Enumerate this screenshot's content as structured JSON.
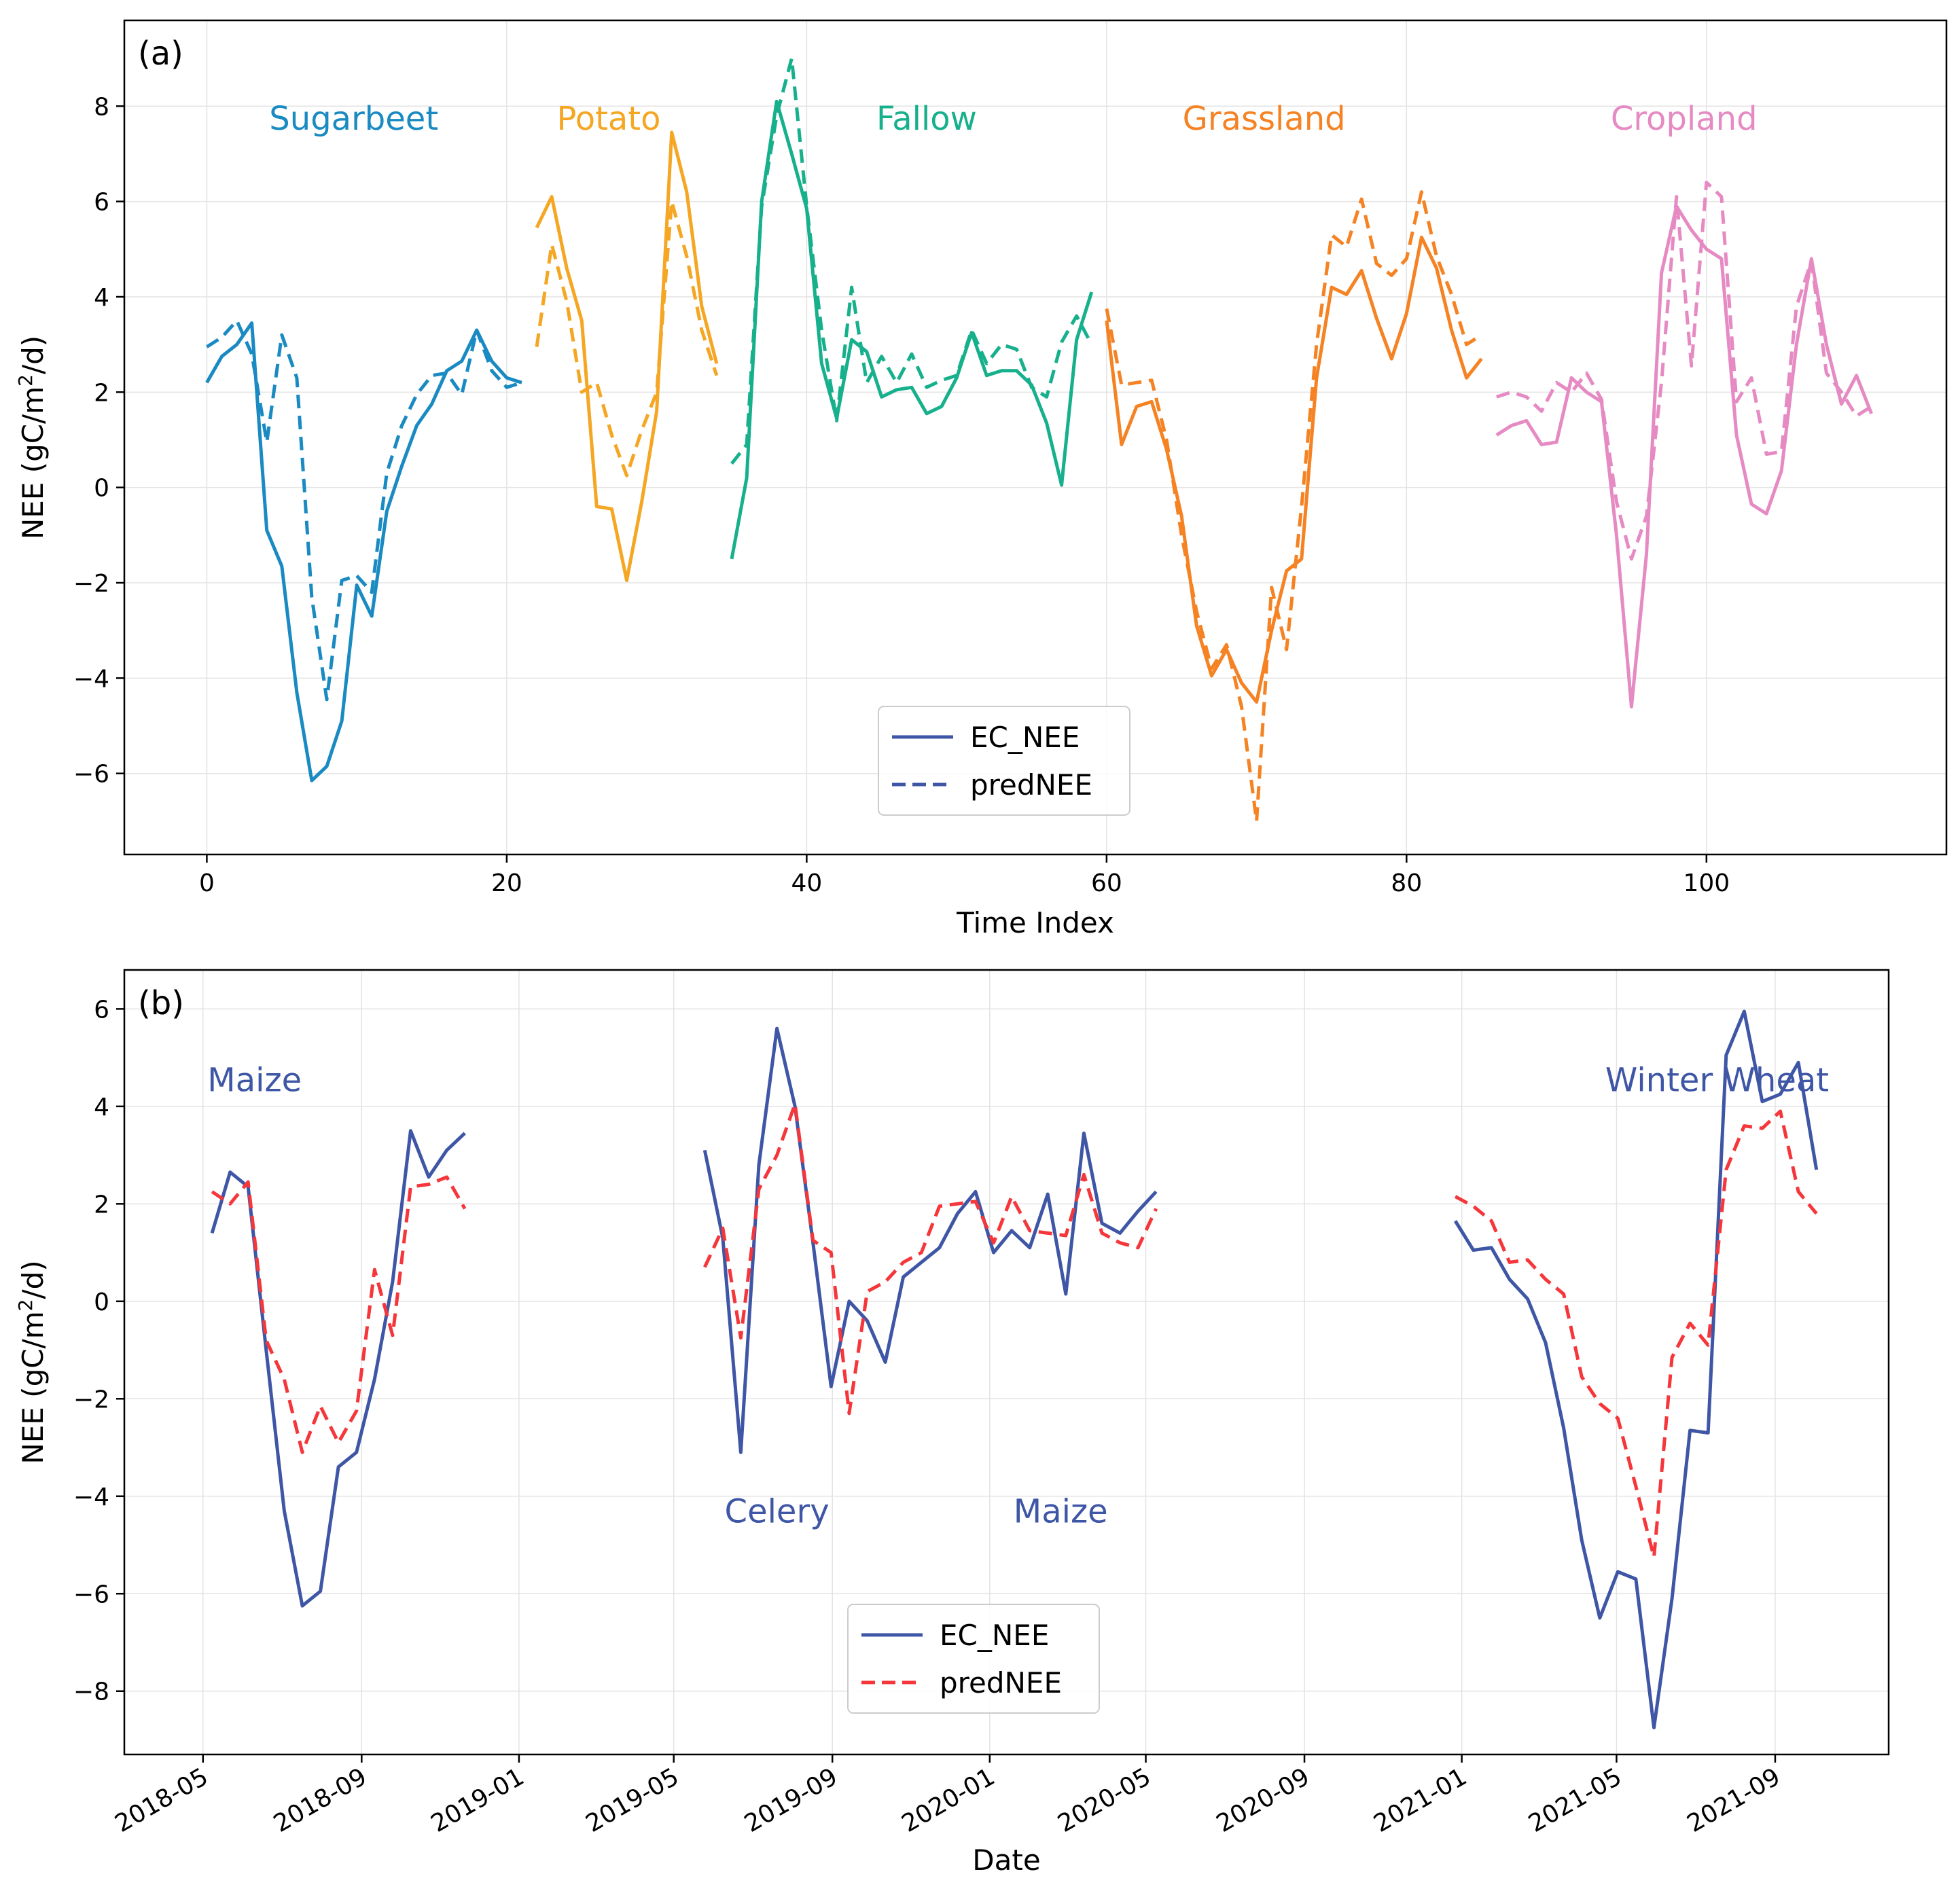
{
  "chart_data": [
    {
      "panel_label": "(a)",
      "type": "line",
      "xlabel": "Time Index",
      "ylabel": "NEE (gC/m²/d)",
      "xlim": [
        -5.5,
        116
      ],
      "ylim": [
        -7.7,
        9.8
      ],
      "xticks": [
        0,
        20,
        40,
        60,
        80,
        100
      ],
      "yticks": [
        -6,
        -4,
        -2,
        0,
        2,
        4,
        6,
        8
      ],
      "grid": true,
      "legend": {
        "position": "lower-center",
        "entries": [
          {
            "label": "EC_NEE",
            "style": "solid",
            "color": "#3e56a5"
          },
          {
            "label": "predNEE",
            "style": "dashed",
            "color": "#3e56a5"
          }
        ]
      },
      "groups": [
        {
          "name": "Sugarbeet",
          "color": "#1a8ac2",
          "label_at": [
            9.8,
            7.75
          ],
          "ec": {
            "x": [
              0,
              1,
              2,
              3,
              4,
              5,
              6,
              7,
              8,
              9,
              10,
              11,
              12,
              13,
              14,
              15,
              16,
              17,
              18,
              19,
              20,
              21
            ],
            "y": [
              2.2,
              2.75,
              3.0,
              3.45,
              -0.9,
              -1.65,
              -4.3,
              -6.15,
              -5.85,
              -4.9,
              -2.05,
              -2.7,
              -0.5,
              0.45,
              1.3,
              1.75,
              2.45,
              2.65,
              3.3,
              2.65,
              2.3,
              2.2
            ]
          },
          "pred": {
            "x": [
              0,
              1,
              2,
              3,
              4,
              5,
              6,
              7,
              8,
              9,
              10,
              11,
              12,
              13,
              14,
              15,
              16,
              17,
              18,
              19,
              20,
              21
            ],
            "y": [
              2.95,
              3.15,
              3.5,
              2.8,
              0.95,
              3.2,
              2.3,
              -2.3,
              -4.45,
              -1.95,
              -1.85,
              -2.2,
              0.3,
              1.3,
              1.95,
              2.35,
              2.4,
              1.95,
              3.3,
              2.45,
              2.1,
              2.2
            ]
          }
        },
        {
          "name": "Potato",
          "color": "#f5a623",
          "label_at": [
            26.8,
            7.75
          ],
          "ec": {
            "x": [
              22,
              23,
              24,
              25,
              26,
              27,
              28,
              29,
              30,
              31,
              32,
              33,
              34
            ],
            "y": [
              5.45,
              6.1,
              4.6,
              3.5,
              -0.4,
              -0.45,
              -1.95,
              -0.3,
              1.6,
              7.45,
              6.2,
              3.8,
              2.6
            ]
          },
          "pred": {
            "x": [
              22,
              23,
              24,
              25,
              26,
              27,
              28,
              29,
              30,
              31,
              32,
              33,
              34
            ],
            "y": [
              2.95,
              5.1,
              3.9,
              2.0,
              2.2,
              1.1,
              0.25,
              1.2,
              2.0,
              6.0,
              4.85,
              3.3,
              2.35
            ]
          }
        },
        {
          "name": "Fallow",
          "color": "#17b08c",
          "label_at": [
            48.0,
            7.75
          ],
          "ec": {
            "x": [
              35,
              36,
              37,
              38,
              39,
              40,
              41,
              42,
              43,
              44,
              45,
              46,
              47,
              48,
              49,
              50,
              51,
              52,
              53,
              54,
              55,
              56,
              57,
              58,
              59
            ],
            "y": [
              -1.5,
              0.2,
              6.0,
              8.1,
              7.0,
              5.85,
              2.6,
              1.45,
              3.1,
              2.85,
              1.9,
              2.05,
              2.1,
              1.55,
              1.7,
              2.3,
              3.25,
              2.35,
              2.45,
              2.45,
              2.15,
              1.35,
              0.05,
              3.1,
              4.1
            ]
          },
          "pred": {
            "x": [
              35,
              36,
              37,
              38,
              39,
              40,
              41,
              42,
              43,
              44,
              45,
              46,
              47,
              48,
              49,
              50,
              51,
              52,
              53,
              54,
              55,
              56,
              57,
              58,
              59
            ],
            "y": [
              0.5,
              0.9,
              5.9,
              7.8,
              9.0,
              5.9,
              3.3,
              1.4,
              4.2,
              2.2,
              2.75,
              2.2,
              2.8,
              2.1,
              2.25,
              2.35,
              3.3,
              2.6,
              3.0,
              2.9,
              2.1,
              1.9,
              3.05,
              3.6,
              3.0
            ]
          }
        },
        {
          "name": "Grassland",
          "color": "#f58223",
          "label_at": [
            70.5,
            7.75
          ],
          "ec": {
            "x": [
              60,
              61,
              62,
              63,
              64,
              65,
              66,
              67,
              68,
              69,
              70,
              71,
              72,
              73,
              74,
              75,
              76,
              77,
              78,
              79,
              80,
              81,
              82,
              83,
              84,
              85
            ],
            "y": [
              3.5,
              0.9,
              1.7,
              1.8,
              0.8,
              -0.6,
              -2.9,
              -3.95,
              -3.4,
              -4.1,
              -4.5,
              -3.0,
              -1.75,
              -1.5,
              2.3,
              4.2,
              4.05,
              4.55,
              3.55,
              2.7,
              3.65,
              5.25,
              4.6,
              3.3,
              2.3,
              2.7
            ]
          },
          "pred": {
            "x": [
              60,
              61,
              62,
              63,
              64,
              65,
              66,
              67,
              68,
              69,
              70,
              71,
              72,
              73,
              74,
              75,
              76,
              77,
              78,
              79,
              80,
              81,
              82,
              83,
              84,
              85
            ],
            "y": [
              3.75,
              2.15,
              2.2,
              2.25,
              1.0,
              -1.0,
              -2.6,
              -3.8,
              -3.3,
              -4.6,
              -7.0,
              -2.1,
              -3.4,
              -0.4,
              3.0,
              5.3,
              5.05,
              6.05,
              4.7,
              4.45,
              4.8,
              6.2,
              4.85,
              4.05,
              3.0,
              3.2
            ]
          }
        },
        {
          "name": "Cropland",
          "color": "#e68ac3",
          "label_at": [
            98.5,
            7.75
          ],
          "ec": {
            "x": [
              86,
              87,
              88,
              89,
              90,
              91,
              92,
              93,
              94,
              95,
              96,
              97,
              98,
              99,
              100,
              101,
              102,
              103,
              104,
              105,
              106,
              107,
              108,
              109,
              110,
              111
            ],
            "y": [
              1.1,
              1.3,
              1.4,
              0.9,
              0.95,
              2.3,
              2.0,
              1.8,
              -1.0,
              -4.6,
              -1.4,
              4.5,
              5.9,
              5.4,
              5.0,
              4.8,
              1.1,
              -0.35,
              -0.55,
              0.35,
              3.0,
              4.8,
              3.0,
              1.75,
              2.35,
              1.55
            ]
          },
          "pred": {
            "x": [
              86,
              87,
              88,
              89,
              90,
              91,
              92,
              93,
              94,
              95,
              96,
              97,
              98,
              99,
              100,
              101,
              102,
              103,
              104,
              105,
              106,
              107,
              108,
              109,
              110,
              111
            ],
            "y": [
              1.9,
              2.0,
              1.9,
              1.6,
              2.2,
              2.0,
              2.4,
              1.85,
              -0.3,
              -1.5,
              -0.6,
              2.2,
              6.1,
              2.55,
              6.4,
              6.1,
              1.8,
              2.3,
              0.7,
              0.75,
              3.8,
              4.75,
              2.4,
              2.0,
              1.5,
              1.7
            ]
          }
        }
      ]
    },
    {
      "panel_label": "(b)",
      "type": "line",
      "xlabel": "Date",
      "ylabel": "NEE (gC/m²/d)",
      "xlim": [
        "2018-03-01",
        "2021-11-28"
      ],
      "ylim": [
        -9.3,
        6.8
      ],
      "xticks": [
        "2018-05",
        "2018-09",
        "2019-01",
        "2019-05",
        "2019-09",
        "2020-01",
        "2020-05",
        "2020-09",
        "2021-01",
        "2021-05",
        "2021-09"
      ],
      "yticks": [
        -8,
        -6,
        -4,
        -2,
        0,
        2,
        4,
        6
      ],
      "grid": true,
      "legend": {
        "position": "lower-center",
        "entries": [
          {
            "label": "EC_NEE",
            "style": "solid",
            "color": "#3e56a5"
          },
          {
            "label": "predNEE",
            "style": "dashed",
            "color": "#f5363a"
          }
        ]
      },
      "annotations": [
        {
          "text": "Maize",
          "x": "2018-06-10",
          "y": 4.55,
          "color": "#3e56a5"
        },
        {
          "text": "Celery",
          "x": "2019-07-20",
          "y": -4.3,
          "color": "#3e56a5"
        },
        {
          "text": "Maize",
          "x": "2020-02-25",
          "y": -4.3,
          "color": "#3e56a5"
        },
        {
          "text": "Winter Wheat",
          "x": "2021-07-18",
          "y": 4.55,
          "color": "#3e56a5"
        }
      ],
      "series": [
        {
          "name": "EC_NEE",
          "color": "#3e56a5",
          "style": "solid",
          "segments": [
            {
              "x": [
                "2018-05-08",
                "2018-05-22",
                "2018-06-05",
                "2018-06-19",
                "2018-07-03",
                "2018-07-17",
                "2018-07-31",
                "2018-08-14",
                "2018-08-28",
                "2018-09-11",
                "2018-09-25",
                "2018-10-09",
                "2018-10-23",
                "2018-11-06",
                "2018-11-20"
              ],
              "y": [
                1.4,
                2.65,
                2.35,
                -1.0,
                -4.3,
                -6.25,
                -5.95,
                -3.4,
                -3.1,
                -1.6,
                0.4,
                3.5,
                2.55,
                3.1,
                3.45
              ]
            },
            {
              "x": [
                "2019-05-25",
                "2019-06-08",
                "2019-06-22",
                "2019-07-06",
                "2019-07-20",
                "2019-08-03",
                "2019-08-17",
                "2019-08-31",
                "2019-09-14",
                "2019-09-28",
                "2019-10-12",
                "2019-10-26",
                "2019-11-09",
                "2019-11-23",
                "2019-12-07",
                "2019-12-21",
                "2020-01-04",
                "2020-01-18",
                "2020-02-01",
                "2020-02-15",
                "2020-02-29",
                "2020-03-14",
                "2020-03-28",
                "2020-04-11",
                "2020-04-25",
                "2020-05-09"
              ],
              "y": [
                3.1,
                1.3,
                -3.1,
                2.8,
                5.6,
                4.0,
                1.2,
                -1.75,
                0.0,
                -0.4,
                -1.25,
                0.5,
                0.8,
                1.1,
                1.8,
                2.25,
                1.0,
                1.45,
                1.1,
                2.2,
                0.15,
                3.45,
                1.6,
                1.4,
                1.85,
                2.25
              ]
            },
            {
              "x": [
                "2020-12-27",
                "2021-01-10",
                "2021-01-24",
                "2021-02-07",
                "2021-02-21",
                "2021-03-07",
                "2021-03-21",
                "2021-04-04",
                "2021-04-18",
                "2021-05-02",
                "2021-05-16",
                "2021-05-30",
                "2021-06-13",
                "2021-06-27",
                "2021-07-11",
                "2021-07-25",
                "2021-08-08",
                "2021-08-22",
                "2021-09-05",
                "2021-09-19",
                "2021-10-03"
              ],
              "y": [
                1.65,
                1.05,
                1.1,
                0.45,
                0.05,
                -0.85,
                -2.6,
                -4.9,
                -6.5,
                -5.55,
                -5.7,
                -8.75,
                -6.1,
                -2.65,
                -2.7,
                5.05,
                5.95,
                4.1,
                4.25,
                4.9,
                2.7
              ]
            }
          ]
        },
        {
          "name": "predNEE",
          "color": "#f5363a",
          "style": "dashed",
          "segments": [
            {
              "x": [
                "2018-05-08",
                "2018-05-22",
                "2018-06-05",
                "2018-06-19",
                "2018-07-03",
                "2018-07-17",
                "2018-07-31",
                "2018-08-14",
                "2018-08-28",
                "2018-09-11",
                "2018-09-25",
                "2018-10-09",
                "2018-10-23",
                "2018-11-06",
                "2018-11-20"
              ],
              "y": [
                2.25,
                2.0,
                2.45,
                -0.8,
                -1.6,
                -3.1,
                -2.15,
                -2.9,
                -2.25,
                0.65,
                -0.7,
                2.35,
                2.4,
                2.55,
                1.9
              ]
            },
            {
              "x": [
                "2019-05-25",
                "2019-06-08",
                "2019-06-22",
                "2019-07-06",
                "2019-07-20",
                "2019-08-03",
                "2019-08-17",
                "2019-08-31",
                "2019-09-14",
                "2019-09-28",
                "2019-10-12",
                "2019-10-26",
                "2019-11-09",
                "2019-11-23",
                "2019-12-07",
                "2019-12-21",
                "2020-01-04",
                "2020-01-18",
                "2020-02-01",
                "2020-02-15",
                "2020-02-29",
                "2020-03-14",
                "2020-03-28",
                "2020-04-11",
                "2020-04-25",
                "2020-05-09"
              ],
              "y": [
                0.7,
                1.5,
                -0.75,
                2.3,
                3.0,
                4.05,
                1.25,
                1.0,
                -2.3,
                0.2,
                0.4,
                0.8,
                1.0,
                1.95,
                2.0,
                2.05,
                1.2,
                2.15,
                1.45,
                1.4,
                1.35,
                2.6,
                1.4,
                1.2,
                1.1,
                1.9
              ]
            },
            {
              "x": [
                "2020-12-27",
                "2021-01-10",
                "2021-01-24",
                "2021-02-07",
                "2021-02-21",
                "2021-03-07",
                "2021-03-21",
                "2021-04-04",
                "2021-04-18",
                "2021-05-02",
                "2021-05-16",
                "2021-05-30",
                "2021-06-13",
                "2021-06-27",
                "2021-07-11",
                "2021-07-25",
                "2021-08-08",
                "2021-08-22",
                "2021-09-05",
                "2021-09-19",
                "2021-10-03"
              ],
              "y": [
                2.15,
                1.95,
                1.65,
                0.8,
                0.85,
                0.45,
                0.15,
                -1.55,
                -2.1,
                -2.4,
                -3.8,
                -5.25,
                -1.15,
                -0.45,
                -0.9,
                2.7,
                3.6,
                3.55,
                3.9,
                2.25,
                1.8
              ]
            }
          ]
        }
      ]
    }
  ]
}
